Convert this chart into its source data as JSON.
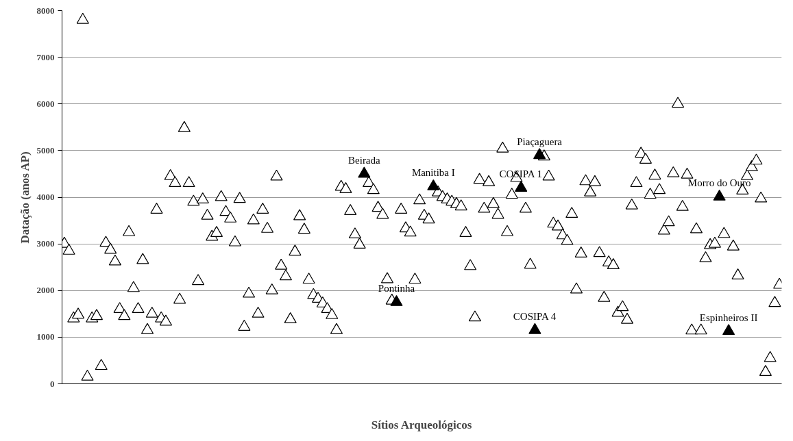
{
  "chart_data": {
    "type": "scatter",
    "xlabel": "Sítios Arqueológicos",
    "ylabel": "Datação (anos AP)",
    "categories": [
      null,
      null,
      null,
      null,
      null,
      null,
      null,
      null,
      null,
      null,
      null,
      null,
      null,
      null,
      null,
      null,
      null,
      null,
      null,
      null,
      null,
      null,
      null,
      null,
      null,
      null,
      null,
      null,
      null,
      null,
      null,
      null,
      null,
      null,
      null,
      null,
      null,
      null,
      null,
      null,
      null,
      null,
      null,
      null,
      null,
      null,
      null,
      null,
      null,
      null,
      null,
      null,
      null,
      null,
      null,
      null,
      null,
      null,
      null,
      null,
      null,
      null,
      null,
      null,
      null,
      null,
      null,
      null,
      null,
      null,
      null,
      null,
      null,
      null,
      null,
      null,
      null,
      null,
      null,
      null,
      null,
      null,
      null,
      null,
      null,
      null,
      null,
      null,
      null,
      null,
      null,
      null,
      null,
      null,
      null,
      null,
      null,
      null,
      null,
      null,
      null,
      null,
      null,
      null,
      null,
      null,
      null,
      null,
      null,
      null,
      null,
      null,
      null,
      null,
      null,
      null,
      null,
      null,
      null,
      null,
      null,
      null,
      null,
      null,
      null,
      null,
      null,
      null,
      null,
      null,
      null,
      null,
      null,
      null,
      null,
      null,
      null,
      null,
      null,
      null,
      null,
      null,
      null,
      null,
      null,
      null,
      null,
      null,
      null,
      null,
      null,
      null,
      null,
      null,
      null,
      null
    ],
    "ylim": [
      0,
      8000
    ],
    "yticks": [
      0,
      1000,
      2000,
      3000,
      4000,
      5000,
      6000,
      7000,
      8000
    ],
    "grid": "y",
    "marker": "triangle",
    "tick_labels": "y",
    "series": [
      {
        "color": "#ffffff",
        "values": [
          3000,
          2850,
          1400,
          1480,
          7800,
          150,
          1400,
          1450,
          380,
          3020,
          2870,
          2620,
          1600,
          1450,
          3250,
          2050,
          1600,
          2650,
          1150,
          1500,
          3730,
          1400,
          1330,
          4450,
          4300,
          1800,
          5480,
          4300,
          3900,
          2200,
          3950,
          3600,
          3150,
          3230,
          4000,
          3680,
          3540,
          3030,
          3960,
          1220,
          1930,
          3500,
          1500,
          3730,
          3320,
          2000,
          4440,
          2530,
          2300,
          1380,
          2830,
          3590,
          3300,
          2230,
          1900,
          1820,
          1720,
          1600,
          1470,
          1150,
          4220,
          4170,
          3700,
          3200,
          2980,
          null,
          4300,
          4150,
          3770,
          3620,
          2240,
          1780,
          null,
          3730,
          3330,
          3240,
          2230,
          3930,
          3600,
          3520,
          null,
          4100,
          4000,
          3950,
          3900,
          3850,
          3800,
          3230,
          2520,
          1420,
          4370,
          3750,
          4320,
          3850,
          3620,
          5040,
          3250,
          4050,
          4410,
          null,
          3750,
          2550,
          null,
          null,
          4870,
          4440,
          3430,
          3370,
          3180,
          3060,
          3640,
          2020,
          2790,
          4340,
          4100,
          4320,
          2800,
          1840,
          2600,
          2540,
          1520,
          1640,
          1370,
          3820,
          4300,
          4930,
          4800,
          4050,
          4460,
          4150,
          3280,
          3460,
          4510,
          6000,
          3790,
          4480,
          1140,
          3310,
          1140,
          2690,
          2970,
          3000,
          null,
          3210,
          null,
          2940,
          2320,
          4140,
          4450,
          4640,
          4780,
          3970,
          250,
          550,
          1730,
          2120
        ]
      },
      {
        "color": "#000000",
        "values": [
          null,
          null,
          null,
          null,
          null,
          null,
          null,
          null,
          null,
          null,
          null,
          null,
          null,
          null,
          null,
          null,
          null,
          null,
          null,
          null,
          null,
          null,
          null,
          null,
          null,
          null,
          null,
          null,
          null,
          null,
          null,
          null,
          null,
          null,
          null,
          null,
          null,
          null,
          null,
          null,
          null,
          null,
          null,
          null,
          null,
          null,
          null,
          null,
          null,
          null,
          null,
          null,
          null,
          null,
          null,
          null,
          null,
          null,
          null,
          null,
          null,
          null,
          null,
          null,
          null,
          4500,
          null,
          null,
          null,
          null,
          null,
          null,
          1750,
          null,
          null,
          null,
          null,
          null,
          null,
          null,
          4230,
          null,
          null,
          null,
          null,
          null,
          null,
          null,
          null,
          null,
          null,
          null,
          null,
          null,
          null,
          null,
          null,
          null,
          null,
          4200,
          null,
          null,
          1150,
          4900,
          null,
          null,
          null,
          null,
          null,
          null,
          null,
          null,
          null,
          null,
          null,
          null,
          null,
          null,
          null,
          null,
          null,
          null,
          null,
          null,
          null,
          null,
          null,
          null,
          null,
          null,
          null,
          null,
          null,
          null,
          null,
          null,
          null,
          null,
          null,
          null,
          null,
          null,
          4010,
          null,
          1130,
          null,
          null,
          null,
          null,
          null,
          null,
          null,
          null,
          null,
          null,
          null
        ]
      }
    ],
    "annotations": [
      "Beirada",
      "Pontinha",
      "Manitiba I",
      "COSIPA 1",
      "COSIPA 4",
      "Piaçaguera",
      "Morro do Ouro",
      "Espinheiros II"
    ]
  }
}
